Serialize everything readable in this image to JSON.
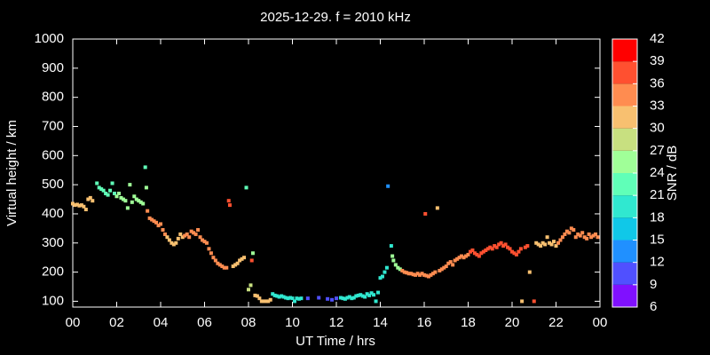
{
  "chart_data": {
    "type": "scatter",
    "title": "2025-12-29. f = 2010 kHz",
    "xlabel": "UT Time / hrs",
    "ylabel": "Virtual height / km",
    "xlim": [
      0,
      24
    ],
    "ylim": [
      80,
      1000
    ],
    "xticks": [
      {
        "value": 0,
        "label": "00"
      },
      {
        "value": 2,
        "label": "02"
      },
      {
        "value": 4,
        "label": "04"
      },
      {
        "value": 6,
        "label": "06"
      },
      {
        "value": 8,
        "label": "08"
      },
      10,
      12,
      14,
      16,
      18,
      20,
      22,
      {
        "value": 24,
        "label": "00"
      }
    ],
    "yticks": [
      100,
      200,
      300,
      400,
      500,
      600,
      700,
      800,
      900,
      1000
    ],
    "colorbar": {
      "label": "SNR / dB",
      "ticks": [
        6,
        9,
        12,
        15,
        18,
        21,
        24,
        27,
        30,
        33,
        36,
        39,
        42
      ],
      "colors": [
        "#8010ff",
        "#5050ff",
        "#2090ff",
        "#10c8e8",
        "#30e8d0",
        "#60ffb8",
        "#a0ff98",
        "#c8e080",
        "#f8c070",
        "#ff8c50",
        "#ff5030",
        "#ff0000"
      ]
    },
    "x": [
      0,
      0.1,
      0.2,
      0.3,
      0.4,
      0.5,
      0.6,
      0.7,
      0.8,
      0.9,
      1.1,
      1.2,
      1.3,
      1.4,
      1.5,
      1.6,
      1.7,
      1.8,
      1.9,
      2.0,
      2.1,
      2.2,
      2.3,
      2.4,
      2.5,
      2.6,
      2.7,
      2.8,
      2.9,
      3.0,
      3.1,
      3.2,
      3.3,
      3.35,
      3.4,
      3.5,
      3.6,
      3.7,
      3.8,
      3.9,
      4.0,
      4.1,
      4.2,
      4.3,
      4.4,
      4.5,
      4.6,
      4.7,
      4.8,
      4.9,
      5.0,
      5.1,
      5.2,
      5.3,
      5.4,
      5.5,
      5.6,
      5.7,
      5.8,
      5.9,
      6.0,
      6.1,
      6.2,
      6.3,
      6.4,
      6.5,
      6.6,
      6.7,
      6.8,
      6.9,
      7.0,
      7.1,
      7.15,
      7.3,
      7.4,
      7.5,
      7.6,
      7.7,
      7.8,
      7.9,
      8.0,
      8.1,
      8.15,
      8.2,
      8.3,
      8.4,
      8.5,
      8.6,
      8.7,
      8.8,
      8.9,
      9.0,
      9.1,
      9.2,
      9.3,
      9.4,
      9.5,
      9.6,
      9.7,
      9.8,
      9.9,
      10.0,
      10.1,
      10.2,
      10.3,
      10.4,
      10.7,
      11.2,
      11.6,
      11.8,
      12.0,
      12.2,
      12.3,
      12.4,
      12.5,
      12.6,
      12.7,
      12.8,
      12.9,
      13.0,
      13.1,
      13.2,
      13.3,
      13.4,
      13.5,
      13.6,
      13.7,
      13.8,
      13.9,
      14.0,
      14.1,
      14.2,
      14.3,
      14.35,
      14.5,
      14.55,
      14.6,
      14.7,
      14.8,
      14.9,
      15.0,
      15.1,
      15.2,
      15.3,
      15.4,
      15.5,
      15.6,
      15.7,
      15.8,
      15.9,
      16.0,
      16.05,
      16.1,
      16.2,
      16.3,
      16.4,
      16.5,
      16.6,
      16.7,
      16.8,
      16.9,
      17.0,
      17.1,
      17.2,
      17.3,
      17.4,
      17.5,
      17.6,
      17.7,
      17.8,
      17.9,
      18.0,
      18.1,
      18.2,
      18.3,
      18.4,
      18.5,
      18.6,
      18.7,
      18.8,
      18.9,
      19.0,
      19.1,
      19.2,
      19.3,
      19.4,
      19.5,
      19.6,
      19.7,
      19.8,
      19.9,
      20.0,
      20.1,
      20.2,
      20.3,
      20.4,
      20.45,
      20.6,
      20.7,
      20.8,
      21.0,
      21.1,
      21.2,
      21.3,
      21.4,
      21.5,
      21.6,
      21.7,
      21.8,
      21.9,
      22.0,
      22.1,
      22.2,
      22.3,
      22.4,
      22.5,
      22.6,
      22.7,
      22.8,
      22.9,
      23.0,
      23.1,
      23.2,
      23.3,
      23.4,
      23.5,
      23.6,
      23.7,
      23.8,
      23.9
    ],
    "values": [
      435,
      430,
      432,
      428,
      430,
      425,
      415,
      450,
      455,
      445,
      505,
      490,
      485,
      480,
      470,
      465,
      480,
      505,
      470,
      460,
      470,
      455,
      450,
      445,
      420,
      500,
      440,
      460,
      450,
      445,
      440,
      435,
      560,
      490,
      410,
      385,
      380,
      375,
      370,
      360,
      365,
      345,
      330,
      320,
      310,
      300,
      295,
      300,
      315,
      330,
      320,
      325,
      330,
      320,
      340,
      335,
      330,
      345,
      320,
      310,
      305,
      300,
      280,
      265,
      250,
      240,
      230,
      225,
      220,
      215,
      215,
      445,
      430,
      220,
      225,
      230,
      240,
      245,
      250,
      490,
      140,
      155,
      240,
      265,
      120,
      118,
      110,
      100,
      100,
      100,
      100,
      105,
      125,
      120,
      118,
      115,
      118,
      115,
      112,
      110,
      112,
      110,
      100,
      110,
      108,
      110,
      110,
      112,
      108,
      105,
      110,
      112,
      110,
      108,
      112,
      115,
      110,
      112,
      118,
      120,
      122,
      118,
      115,
      125,
      120,
      128,
      122,
      100,
      130,
      180,
      185,
      200,
      215,
      495,
      290,
      255,
      240,
      225,
      215,
      210,
      205,
      200,
      198,
      195,
      195,
      192,
      190,
      195,
      190,
      195,
      190,
      400,
      188,
      185,
      190,
      195,
      200,
      420,
      205,
      210,
      215,
      220,
      230,
      235,
      225,
      240,
      245,
      250,
      255,
      250,
      255,
      260,
      270,
      275,
      265,
      260,
      255,
      265,
      270,
      275,
      280,
      285,
      280,
      290,
      285,
      295,
      300,
      290,
      295,
      285,
      280,
      270,
      265,
      260,
      270,
      280,
      100,
      285,
      290,
      200,
      100,
      300,
      295,
      290,
      300,
      295,
      320,
      300,
      295,
      305,
      290,
      300,
      310,
      320,
      330,
      340,
      335,
      350,
      345,
      320,
      330,
      325,
      335,
      320,
      315,
      330,
      320,
      325,
      330,
      320
    ],
    "snr": [
      30,
      30,
      30,
      30,
      30,
      30,
      30,
      32,
      32,
      32,
      22,
      22,
      22,
      22,
      22,
      22,
      22,
      22,
      22,
      24,
      24,
      24,
      24,
      24,
      24,
      24,
      24,
      24,
      24,
      26,
      26,
      26,
      21,
      26,
      35,
      35,
      35,
      35,
      35,
      35,
      35,
      35,
      35,
      30,
      30,
      30,
      30,
      30,
      30,
      30,
      30,
      34,
      34,
      34,
      34,
      34,
      34,
      34,
      34,
      34,
      35,
      35,
      35,
      35,
      35,
      35,
      35,
      35,
      35,
      35,
      35,
      36,
      36,
      32,
      32,
      32,
      32,
      32,
      32,
      21,
      28,
      28,
      36,
      26,
      30,
      30,
      30,
      30,
      30,
      30,
      30,
      30,
      19,
      19,
      19,
      19,
      19,
      19,
      19,
      19,
      19,
      19,
      19,
      19,
      19,
      19,
      11,
      11,
      11,
      11,
      11,
      18,
      18,
      18,
      18,
      18,
      18,
      18,
      18,
      18,
      18,
      18,
      18,
      18,
      18,
      18,
      18,
      18,
      18,
      20,
      20,
      20,
      20,
      12,
      20,
      25,
      25,
      25,
      25,
      25,
      35,
      35,
      35,
      35,
      35,
      35,
      35,
      35,
      35,
      35,
      35,
      37,
      35,
      35,
      35,
      35,
      35,
      32,
      33,
      33,
      33,
      33,
      33,
      33,
      33,
      33,
      33,
      33,
      33,
      33,
      33,
      33,
      36,
      36,
      36,
      36,
      36,
      36,
      36,
      36,
      36,
      36,
      36,
      36,
      36,
      36,
      36,
      36,
      36,
      36,
      36,
      36,
      37,
      37,
      37,
      37,
      30,
      36,
      36,
      32,
      37,
      30,
      30,
      30,
      30,
      30,
      30,
      30,
      30,
      30,
      30,
      33,
      33,
      33,
      33,
      33,
      33,
      33,
      33,
      33,
      33,
      33,
      33,
      33,
      33,
      33,
      33,
      33,
      33,
      33
    ]
  }
}
